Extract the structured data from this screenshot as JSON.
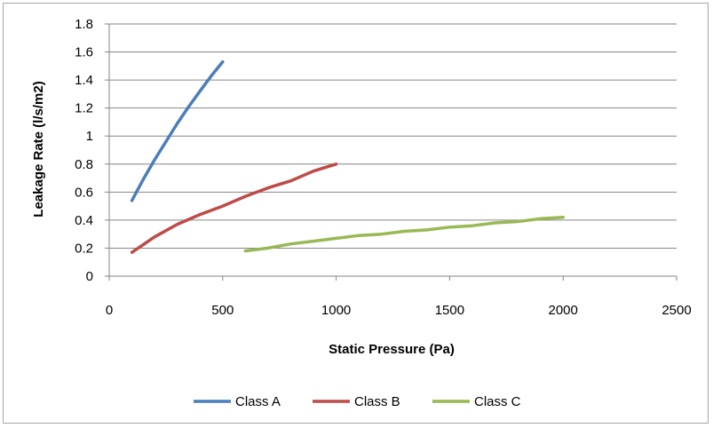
{
  "chart_data": {
    "type": "line",
    "xlabel": "Static Pressure (Pa)",
    "ylabel": "Leakage Rate (l/s/m2)",
    "xlim": [
      0,
      2500
    ],
    "ylim": [
      0,
      1.8
    ],
    "x_ticks": [
      "0",
      "500",
      "1000",
      "1500",
      "2000",
      "2500"
    ],
    "y_ticks": [
      "0",
      "0.2",
      "0.4",
      "0.6",
      "0.8",
      "1",
      "1.2",
      "1.4",
      "1.6",
      "1.8"
    ],
    "grid": "horizontal",
    "legend_position": "bottom",
    "series": [
      {
        "name": "Class A",
        "color": "#4a7ebb",
        "x": [
          100,
          150,
          200,
          250,
          300,
          350,
          400,
          450,
          500
        ],
        "y": [
          0.54,
          0.69,
          0.83,
          0.96,
          1.09,
          1.21,
          1.32,
          1.43,
          1.53
        ]
      },
      {
        "name": "Class B",
        "color": "#be4b48",
        "x": [
          100,
          200,
          300,
          400,
          500,
          600,
          700,
          800,
          900,
          1000
        ],
        "y": [
          0.17,
          0.28,
          0.37,
          0.44,
          0.5,
          0.57,
          0.63,
          0.68,
          0.75,
          0.8
        ]
      },
      {
        "name": "Class C",
        "color": "#98b954",
        "x": [
          600,
          700,
          800,
          900,
          1000,
          1100,
          1200,
          1300,
          1400,
          1500,
          1600,
          1700,
          1800,
          1900,
          2000
        ],
        "y": [
          0.18,
          0.2,
          0.23,
          0.25,
          0.27,
          0.29,
          0.3,
          0.32,
          0.33,
          0.35,
          0.36,
          0.38,
          0.39,
          0.41,
          0.42
        ]
      }
    ]
  }
}
